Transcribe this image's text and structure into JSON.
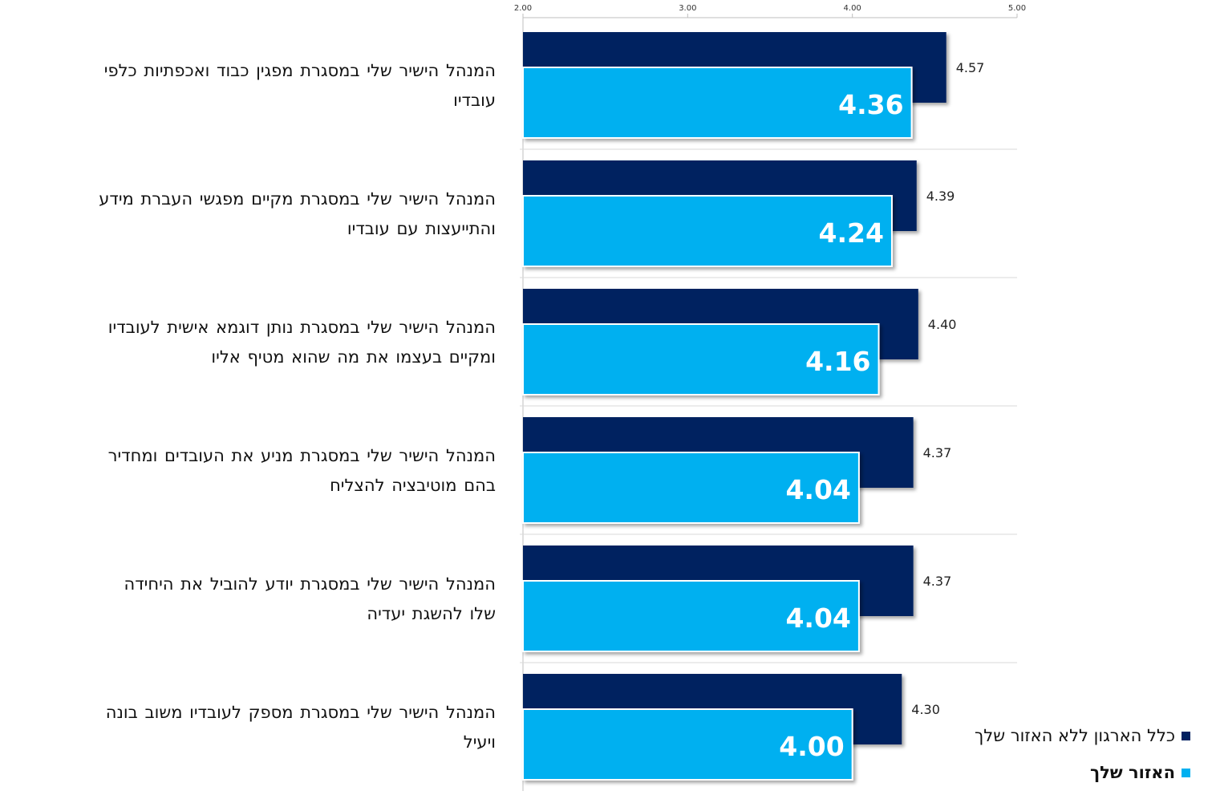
{
  "chart_data": {
    "type": "bar",
    "orientation": "horizontal",
    "xlim": [
      2,
      5
    ],
    "x_ticks": [
      "2.00",
      "3.00",
      "4.00",
      "5.00"
    ],
    "x_axis_position": "top",
    "grid": false,
    "legend_position": "bottom-right",
    "categories": [
      "המנהל הישיר שלי במסגרת מפגין כבוד ואכפתיות כלפי עובדיו",
      "המנהל הישיר שלי במסגרת מקיים מפגשי העברת מידע והתייעצות עם עובדיו",
      "המנהל הישיר שלי במסגרת נותן דוגמא אישית לעובדיו ומקיים בעצמו את מה שהוא מטיף אליו",
      "המנהל הישיר שלי במסגרת מניע את העובדים ומחדיר בהם מוטיבציה להצליח",
      "המנהל הישיר שלי במסגרת יודע להוביל את היחידה שלו  להשגת יעדיה",
      "המנהל הישיר שלי במסגרת מספק לעובדיו משוב בונה ויעיל"
    ],
    "category_lines": [
      [
        "המנהל הישיר שלי במסגרת מפגין כבוד ואכפתיות כלפי",
        "עובדיו"
      ],
      [
        "המנהל הישיר שלי במסגרת מקיים מפגשי העברת מידע",
        "והתייעצות עם עובדיו"
      ],
      [
        "המנהל הישיר שלי במסגרת נותן דוגמא אישית לעובדיו",
        "ומקיים בעצמו את מה שהוא מטיף אליו"
      ],
      [
        "המנהל הישיר שלי במסגרת מניע את העובדים ומחדיר",
        "בהם מוטיבציה להצליח"
      ],
      [
        "המנהל הישיר שלי במסגרת יודע להוביל את היחידה",
        "שלו  להשגת יעדיה"
      ],
      [
        "המנהל הישיר שלי במסגרת מספק לעובדיו משוב בונה",
        "ויעיל"
      ]
    ],
    "series": [
      {
        "name": "כלל הארגון ללא האזור שלך",
        "color": "#002060",
        "values": [
          4.57,
          4.39,
          4.4,
          4.37,
          4.37,
          4.3
        ],
        "labels": [
          "4.57",
          "4.39",
          "4.40",
          "4.37",
          "4.37",
          "4.30"
        ]
      },
      {
        "name": "האזור שלך",
        "color": "#00B0F0",
        "values": [
          4.36,
          4.24,
          4.16,
          4.04,
          4.04,
          4.0
        ],
        "labels": [
          "4.36",
          "4.24",
          "4.16",
          "4.04",
          "4.04",
          "4.00"
        ]
      }
    ]
  }
}
